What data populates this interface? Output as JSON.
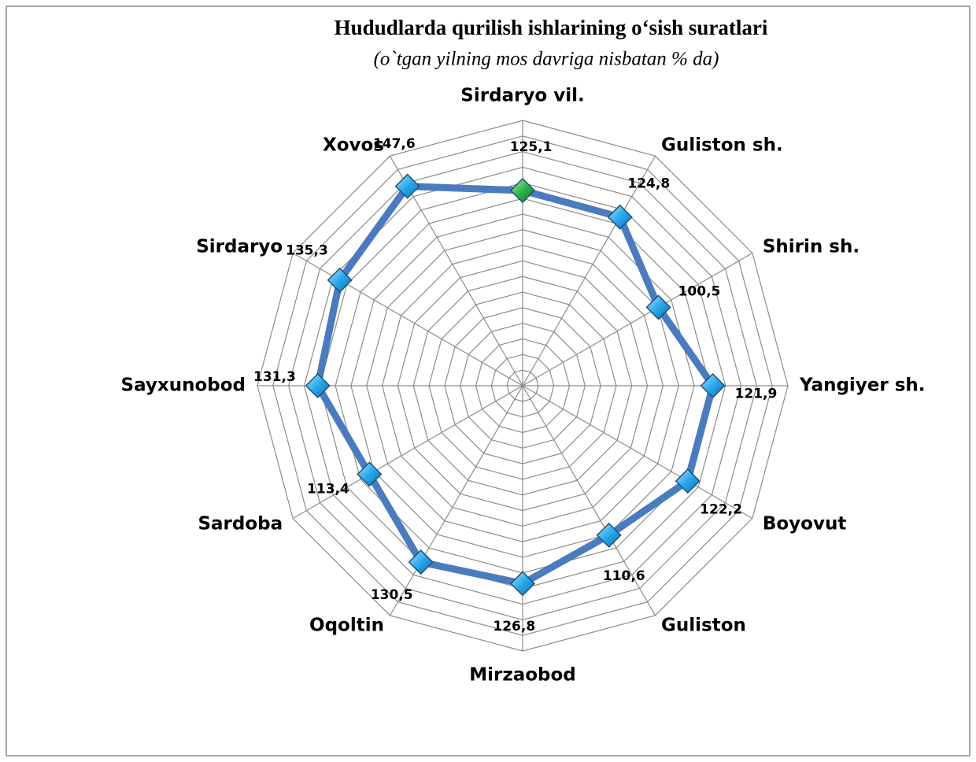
{
  "chart_data": {
    "type": "radar",
    "title": "Hududlarda qurilish ishlarining oʻsish suratlari",
    "subtitle": "(o`tgan yilning mos davriga nisbatan % da)",
    "categories": [
      "Sirdaryo vil.",
      "Guliston sh.",
      "Shirin sh.",
      "Yangiyer sh.",
      "Boyovut",
      "Guliston",
      "Mirzaobod",
      "Oqoltin",
      "Sardoba",
      "Sayxunobod",
      "Sirdaryo",
      "Xovos"
    ],
    "values": [
      125.1,
      124.8,
      100.5,
      121.9,
      122.2,
      110.6,
      126.8,
      130.5,
      113.4,
      131.3,
      135.3,
      147.6
    ],
    "value_labels": [
      "125,1",
      "124,8",
      "100,5",
      "121,9",
      "122,2",
      "110,6",
      "126,8",
      "130,5",
      "113,4",
      "131,3",
      "135,3",
      "147,6"
    ],
    "color": "#4a7bbf",
    "marker_color": "#29a8ea",
    "highlight_color": "#2fb34a",
    "ylim": [
      0,
      170
    ],
    "yticks": [
      0,
      10,
      20,
      30,
      40,
      50,
      60,
      70,
      80,
      90,
      100,
      110,
      120,
      130,
      140,
      150,
      160,
      170
    ],
    "grid": true
  }
}
